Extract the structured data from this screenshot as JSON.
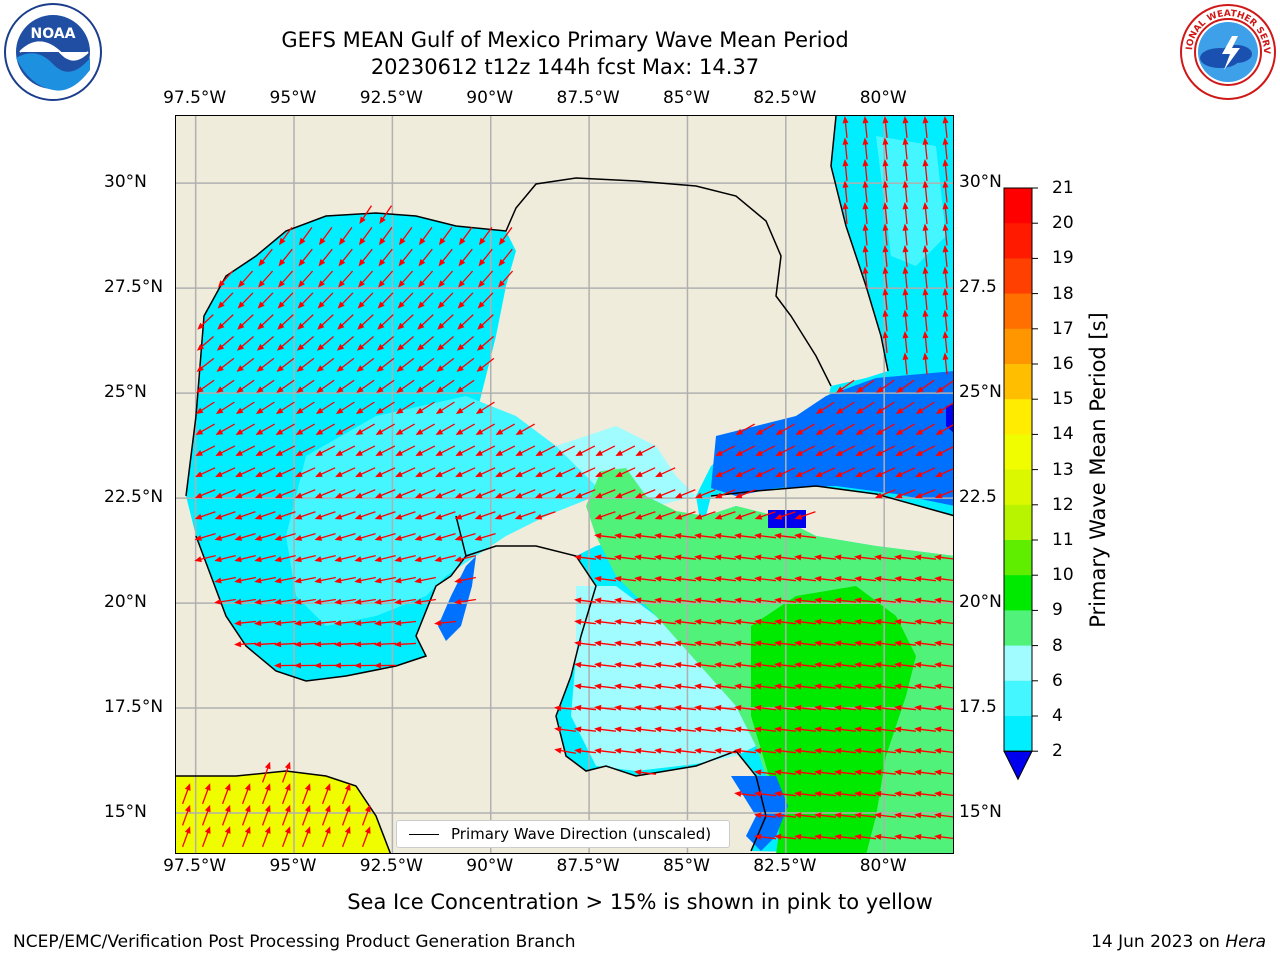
{
  "title": {
    "line1": "GEFS MEAN Gulf of Mexico Primary Wave Mean Period",
    "line2": "20230612 t12z 144h fcst   Max: 14.37"
  },
  "map": {
    "lon_labels": [
      "97.5°W",
      "95°W",
      "92.5°W",
      "90°W",
      "87.5°W",
      "85°W",
      "82.5°W",
      "80°W"
    ],
    "lon_values": [
      -97.5,
      -95,
      -92.5,
      -90,
      -87.5,
      -85,
      -82.5,
      -80
    ],
    "lat_labels_left": [
      "30°N",
      "27.5°N",
      "25°N",
      "22.5°N",
      "20°N",
      "17.5°N",
      "15°N"
    ],
    "lat_labels_right": [
      "30°N",
      "27.5",
      "25°N",
      "22.5",
      "20°N",
      "17.5",
      "15°N"
    ],
    "lat_values": [
      30,
      27.5,
      25,
      22.5,
      20,
      17.5,
      15
    ],
    "extent": {
      "lon_min": -98,
      "lon_max": -78.2,
      "lat_min": 14,
      "lat_max": 31.6
    },
    "colors": {
      "land": "#efecdc",
      "grid": "#b0b0b0",
      "arrow": "#ff0000",
      "coast": "#000000"
    }
  },
  "legend": {
    "label": "Primary Wave Direction (unscaled)"
  },
  "colorbar": {
    "title": "Primary Wave Mean Period [s]",
    "ticks": [
      "21",
      "20",
      "19",
      "18",
      "17",
      "16",
      "15",
      "14",
      "13",
      "12",
      "11",
      "10",
      "9",
      "8",
      "6",
      "4",
      "2"
    ],
    "colors": [
      "#0000ee",
      "#0070ff",
      "#00eeff",
      "#44f6ff",
      "#a0fcff",
      "#50f27a",
      "#00ea00",
      "#60ee00",
      "#b8f400",
      "#dcf800",
      "#f0fc00",
      "#ffec00",
      "#ffbe00",
      "#ff9600",
      "#ff7000",
      "#ff4000",
      "#ff1a00",
      "#ff0000"
    ]
  },
  "bottom_note": "Sea Ice Concentration > 15% is shown in pink to yellow",
  "footer": {
    "left": "NCEP/EMC/Verification Post Processing Product Generation Branch",
    "right_date": "14 Jun 2023 on",
    "right_host": "Hera"
  },
  "logos": {
    "noaa": "NOAA",
    "nws": "NATIONAL WEATHER SERVICE"
  }
}
